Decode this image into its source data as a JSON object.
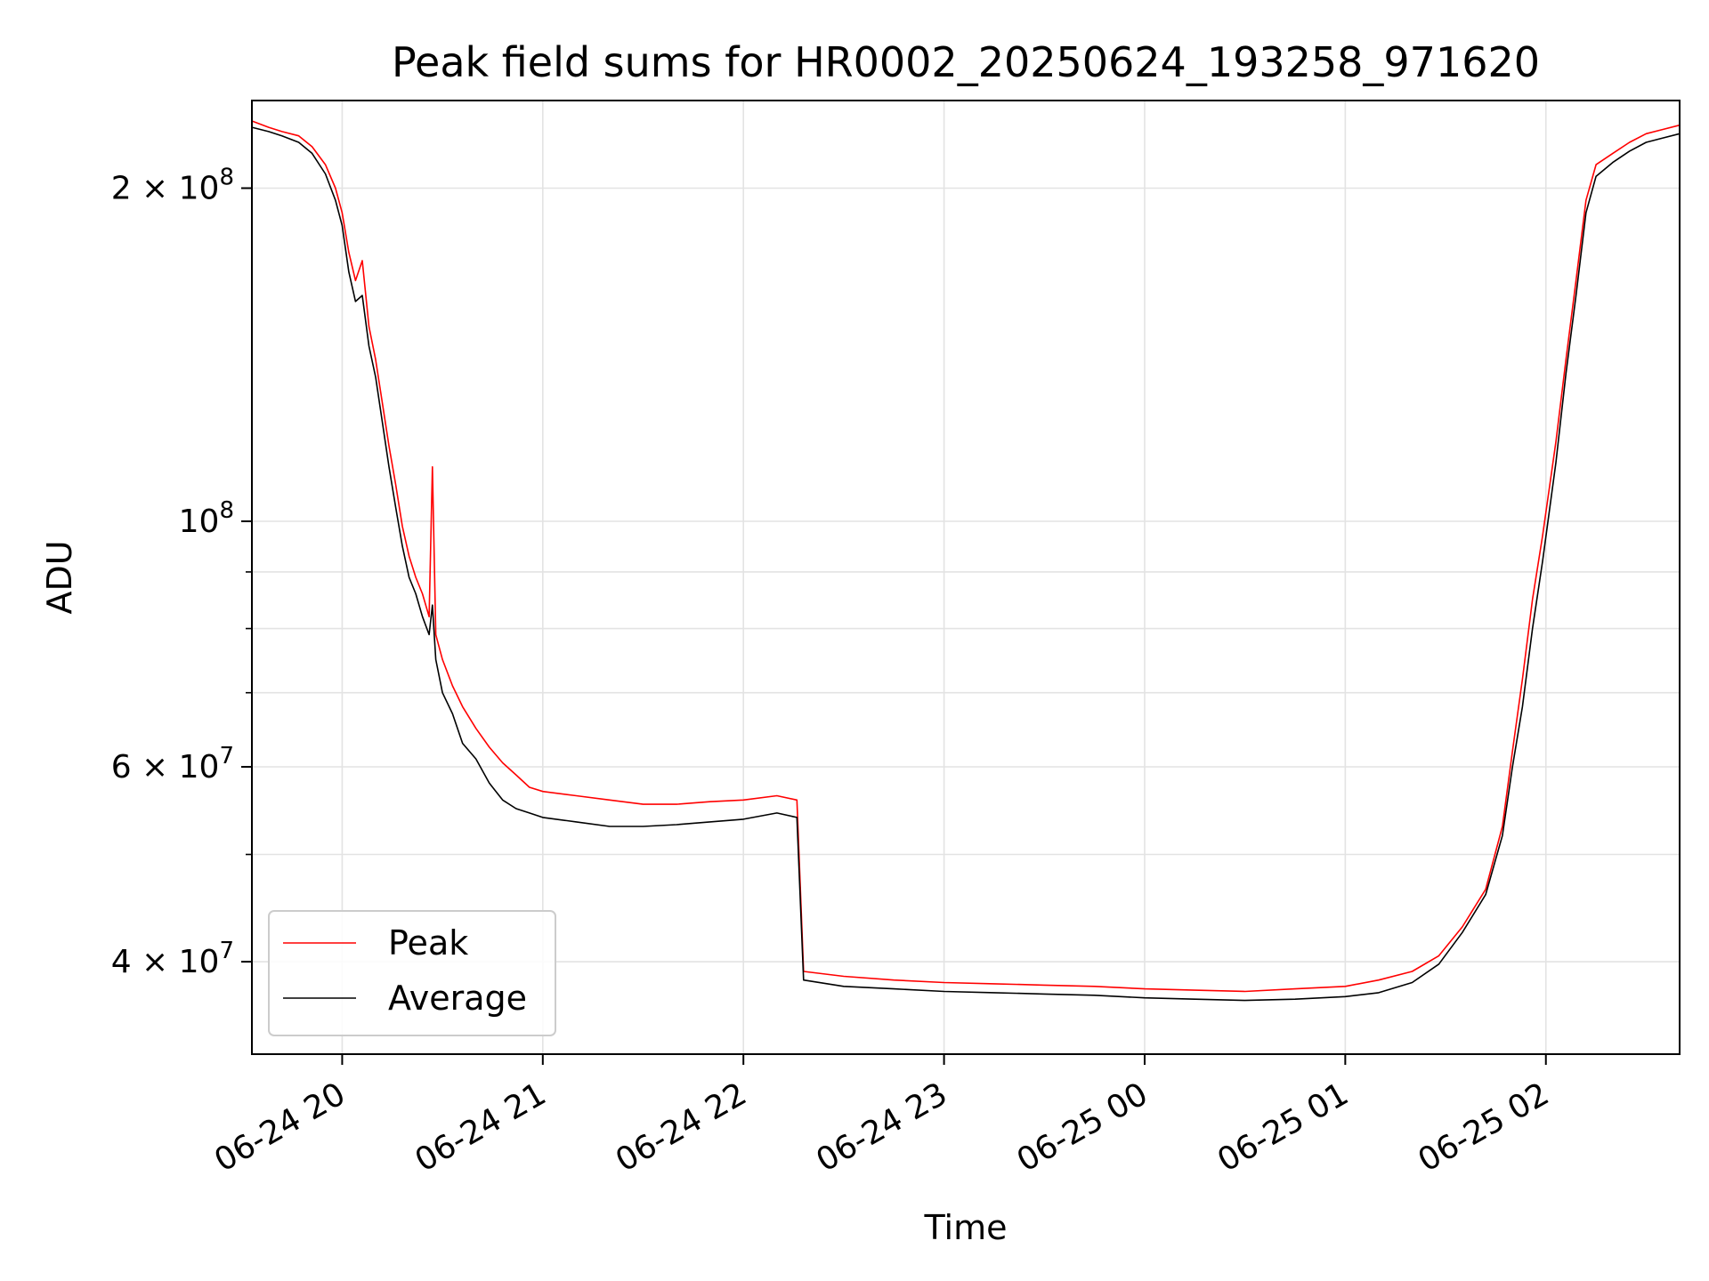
{
  "chart_data": {
    "type": "line",
    "title": "Peak field sums for HR0002_20250624_193258_971620",
    "xlabel": "Time",
    "ylabel": "ADU",
    "y_scale": "log",
    "ylim": [
      33000000,
      240000000
    ],
    "xlim": [
      "2025-06-24 19:33",
      "2025-06-25 02:40"
    ],
    "grid": true,
    "legend_position": "lower-left",
    "x_ticks": [
      {
        "value": "2025-06-24 20:00",
        "label": "06-24 20"
      },
      {
        "value": "2025-06-24 21:00",
        "label": "06-24 21"
      },
      {
        "value": "2025-06-24 22:00",
        "label": "06-24 22"
      },
      {
        "value": "2025-06-24 23:00",
        "label": "06-24 23"
      },
      {
        "value": "2025-06-25 00:00",
        "label": "06-25 00"
      },
      {
        "value": "2025-06-25 01:00",
        "label": "06-25 01"
      },
      {
        "value": "2025-06-25 02:00",
        "label": "06-25 02"
      }
    ],
    "y_ticks_major": [
      {
        "value": 40000000,
        "label_base": "4 × 10",
        "label_exp": "7"
      },
      {
        "value": 60000000,
        "label_base": "6 × 10",
        "label_exp": "7"
      },
      {
        "value": 100000000,
        "label_base": "10",
        "label_exp": "8"
      },
      {
        "value": 200000000,
        "label_base": "2 × 10",
        "label_exp": "8"
      }
    ],
    "y_ticks_minor": [
      50000000,
      70000000,
      80000000,
      90000000
    ],
    "series": [
      {
        "name": "Peak",
        "color": "#ff0000",
        "points": [
          [
            "2025-06-24 19:33",
            230000000
          ],
          [
            "2025-06-24 19:38",
            227000000
          ],
          [
            "2025-06-24 19:42",
            225000000
          ],
          [
            "2025-06-24 19:47",
            223000000
          ],
          [
            "2025-06-24 19:51",
            218000000
          ],
          [
            "2025-06-24 19:55",
            210000000
          ],
          [
            "2025-06-24 19:58",
            200000000
          ],
          [
            "2025-06-24 20:00",
            190000000
          ],
          [
            "2025-06-24 20:02",
            175000000
          ],
          [
            "2025-06-24 20:04",
            165000000
          ],
          [
            "2025-06-24 20:06",
            172000000
          ],
          [
            "2025-06-24 20:08",
            150000000
          ],
          [
            "2025-06-24 20:10",
            140000000
          ],
          [
            "2025-06-24 20:12",
            128000000
          ],
          [
            "2025-06-24 20:14",
            117000000
          ],
          [
            "2025-06-24 20:16",
            108000000
          ],
          [
            "2025-06-24 20:18",
            99000000
          ],
          [
            "2025-06-24 20:20",
            93000000
          ],
          [
            "2025-06-24 20:22",
            89000000
          ],
          [
            "2025-06-24 20:24",
            86000000
          ],
          [
            "2025-06-24 20:26",
            82000000
          ],
          [
            "2025-06-24 20:27",
            112000000
          ],
          [
            "2025-06-24 20:28",
            79000000
          ],
          [
            "2025-06-24 20:30",
            75000000
          ],
          [
            "2025-06-24 20:33",
            71000000
          ],
          [
            "2025-06-24 20:36",
            68000000
          ],
          [
            "2025-06-24 20:40",
            65000000
          ],
          [
            "2025-06-24 20:44",
            62500000
          ],
          [
            "2025-06-24 20:48",
            60500000
          ],
          [
            "2025-06-24 20:52",
            59000000
          ],
          [
            "2025-06-24 20:56",
            57500000
          ],
          [
            "2025-06-24 21:00",
            57000000
          ],
          [
            "2025-06-24 21:10",
            56500000
          ],
          [
            "2025-06-24 21:20",
            56000000
          ],
          [
            "2025-06-24 21:30",
            55500000
          ],
          [
            "2025-06-24 21:40",
            55500000
          ],
          [
            "2025-06-24 21:50",
            55800000
          ],
          [
            "2025-06-24 22:00",
            56000000
          ],
          [
            "2025-06-24 22:10",
            56500000
          ],
          [
            "2025-06-24 22:16",
            56000000
          ],
          [
            "2025-06-24 22:18",
            39200000
          ],
          [
            "2025-06-24 22:30",
            38800000
          ],
          [
            "2025-06-24 22:45",
            38500000
          ],
          [
            "2025-06-24 23:00",
            38300000
          ],
          [
            "2025-06-24 23:15",
            38200000
          ],
          [
            "2025-06-24 23:30",
            38100000
          ],
          [
            "2025-06-24 23:45",
            38000000
          ],
          [
            "2025-06-25 00:00",
            37800000
          ],
          [
            "2025-06-25 00:15",
            37700000
          ],
          [
            "2025-06-25 00:30",
            37600000
          ],
          [
            "2025-06-25 00:45",
            37800000
          ],
          [
            "2025-06-25 01:00",
            38000000
          ],
          [
            "2025-06-25 01:10",
            38500000
          ],
          [
            "2025-06-25 01:20",
            39200000
          ],
          [
            "2025-06-25 01:28",
            40500000
          ],
          [
            "2025-06-25 01:35",
            43000000
          ],
          [
            "2025-06-25 01:42",
            46500000
          ],
          [
            "2025-06-25 01:47",
            53000000
          ],
          [
            "2025-06-25 01:50",
            62000000
          ],
          [
            "2025-06-25 01:53",
            72000000
          ],
          [
            "2025-06-25 01:56",
            85000000
          ],
          [
            "2025-06-25 01:59",
            97000000
          ],
          [
            "2025-06-25 02:03",
            118000000
          ],
          [
            "2025-06-25 02:06",
            140000000
          ],
          [
            "2025-06-25 02:09",
            165000000
          ],
          [
            "2025-06-25 02:12",
            195000000
          ],
          [
            "2025-06-25 02:15",
            210000000
          ],
          [
            "2025-06-25 02:20",
            215000000
          ],
          [
            "2025-06-25 02:25",
            220000000
          ],
          [
            "2025-06-25 02:30",
            224000000
          ],
          [
            "2025-06-25 02:35",
            226000000
          ],
          [
            "2025-06-25 02:40",
            228000000
          ]
        ]
      },
      {
        "name": "Average",
        "color": "#000000",
        "points": [
          [
            "2025-06-24 19:33",
            227000000
          ],
          [
            "2025-06-24 19:38",
            225000000
          ],
          [
            "2025-06-24 19:42",
            223000000
          ],
          [
            "2025-06-24 19:47",
            220000000
          ],
          [
            "2025-06-24 19:51",
            215000000
          ],
          [
            "2025-06-24 19:55",
            206000000
          ],
          [
            "2025-06-24 19:58",
            195000000
          ],
          [
            "2025-06-24 20:00",
            185000000
          ],
          [
            "2025-06-24 20:02",
            168000000
          ],
          [
            "2025-06-24 20:04",
            158000000
          ],
          [
            "2025-06-24 20:06",
            160000000
          ],
          [
            "2025-06-24 20:08",
            144000000
          ],
          [
            "2025-06-24 20:10",
            135000000
          ],
          [
            "2025-06-24 20:12",
            123000000
          ],
          [
            "2025-06-24 20:14",
            112000000
          ],
          [
            "2025-06-24 20:16",
            103000000
          ],
          [
            "2025-06-24 20:18",
            95000000
          ],
          [
            "2025-06-24 20:20",
            89000000
          ],
          [
            "2025-06-24 20:22",
            86000000
          ],
          [
            "2025-06-24 20:24",
            82000000
          ],
          [
            "2025-06-24 20:26",
            79000000
          ],
          [
            "2025-06-24 20:27",
            84000000
          ],
          [
            "2025-06-24 20:28",
            75000000
          ],
          [
            "2025-06-24 20:30",
            70000000
          ],
          [
            "2025-06-24 20:33",
            67000000
          ],
          [
            "2025-06-24 20:36",
            63000000
          ],
          [
            "2025-06-24 20:40",
            61000000
          ],
          [
            "2025-06-24 20:44",
            58000000
          ],
          [
            "2025-06-24 20:48",
            56000000
          ],
          [
            "2025-06-24 20:52",
            55000000
          ],
          [
            "2025-06-24 20:56",
            54500000
          ],
          [
            "2025-06-24 21:00",
            54000000
          ],
          [
            "2025-06-24 21:10",
            53500000
          ],
          [
            "2025-06-24 21:20",
            53000000
          ],
          [
            "2025-06-24 21:30",
            53000000
          ],
          [
            "2025-06-24 21:40",
            53200000
          ],
          [
            "2025-06-24 21:50",
            53500000
          ],
          [
            "2025-06-24 22:00",
            53800000
          ],
          [
            "2025-06-24 22:10",
            54500000
          ],
          [
            "2025-06-24 22:16",
            54000000
          ],
          [
            "2025-06-24 22:18",
            38500000
          ],
          [
            "2025-06-24 22:30",
            38000000
          ],
          [
            "2025-06-24 22:45",
            37800000
          ],
          [
            "2025-06-24 23:00",
            37600000
          ],
          [
            "2025-06-24 23:15",
            37500000
          ],
          [
            "2025-06-24 23:30",
            37400000
          ],
          [
            "2025-06-24 23:45",
            37300000
          ],
          [
            "2025-06-25 00:00",
            37100000
          ],
          [
            "2025-06-25 00:15",
            37000000
          ],
          [
            "2025-06-25 00:30",
            36900000
          ],
          [
            "2025-06-25 00:45",
            37000000
          ],
          [
            "2025-06-25 01:00",
            37200000
          ],
          [
            "2025-06-25 01:10",
            37500000
          ],
          [
            "2025-06-25 01:20",
            38300000
          ],
          [
            "2025-06-25 01:28",
            39800000
          ],
          [
            "2025-06-25 01:35",
            42500000
          ],
          [
            "2025-06-25 01:42",
            46000000
          ],
          [
            "2025-06-25 01:47",
            52000000
          ],
          [
            "2025-06-25 01:50",
            60000000
          ],
          [
            "2025-06-25 01:53",
            68000000
          ],
          [
            "2025-06-25 01:56",
            80000000
          ],
          [
            "2025-06-25 01:59",
            92000000
          ],
          [
            "2025-06-25 02:03",
            113000000
          ],
          [
            "2025-06-25 02:06",
            136000000
          ],
          [
            "2025-06-25 02:09",
            160000000
          ],
          [
            "2025-06-25 02:12",
            190000000
          ],
          [
            "2025-06-25 02:15",
            205000000
          ],
          [
            "2025-06-25 02:20",
            211000000
          ],
          [
            "2025-06-25 02:25",
            216000000
          ],
          [
            "2025-06-25 02:30",
            220000000
          ],
          [
            "2025-06-25 02:35",
            222000000
          ],
          [
            "2025-06-25 02:40",
            224000000
          ]
        ]
      }
    ]
  }
}
